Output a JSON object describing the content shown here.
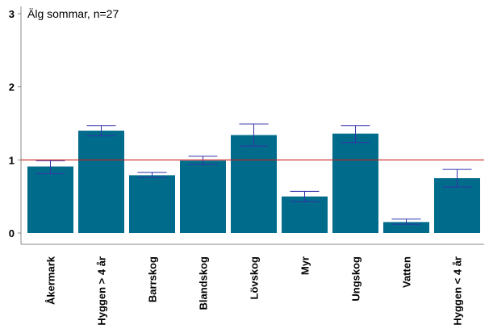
{
  "chart_data": {
    "type": "bar",
    "title": "Älg sommar, n=27",
    "xlabel": "",
    "ylabel": "",
    "categories": [
      "Åkermark",
      "Hyggen > 4 år",
      "Barrskog",
      "Blandskog",
      "Lövskog",
      "Myr",
      "Ungskog",
      "Vatten",
      "Hyggen < 4 år"
    ],
    "values": [
      0.91,
      1.4,
      0.79,
      0.99,
      1.34,
      0.5,
      1.36,
      0.15,
      0.75
    ],
    "error_low": [
      0.81,
      1.33,
      0.76,
      0.94,
      1.19,
      0.43,
      1.24,
      0.12,
      0.63
    ],
    "error_high": [
      0.99,
      1.47,
      0.83,
      1.05,
      1.49,
      0.57,
      1.47,
      0.19,
      0.87
    ],
    "ylim": [
      0,
      3
    ],
    "yticks": [
      0,
      1,
      2,
      3
    ],
    "reference_line": 1,
    "grid": false,
    "colors": {
      "bar": "#006b8a",
      "error_bar": "#3333aa",
      "reference_line": "#cc2222",
      "axis": "#888888"
    }
  }
}
